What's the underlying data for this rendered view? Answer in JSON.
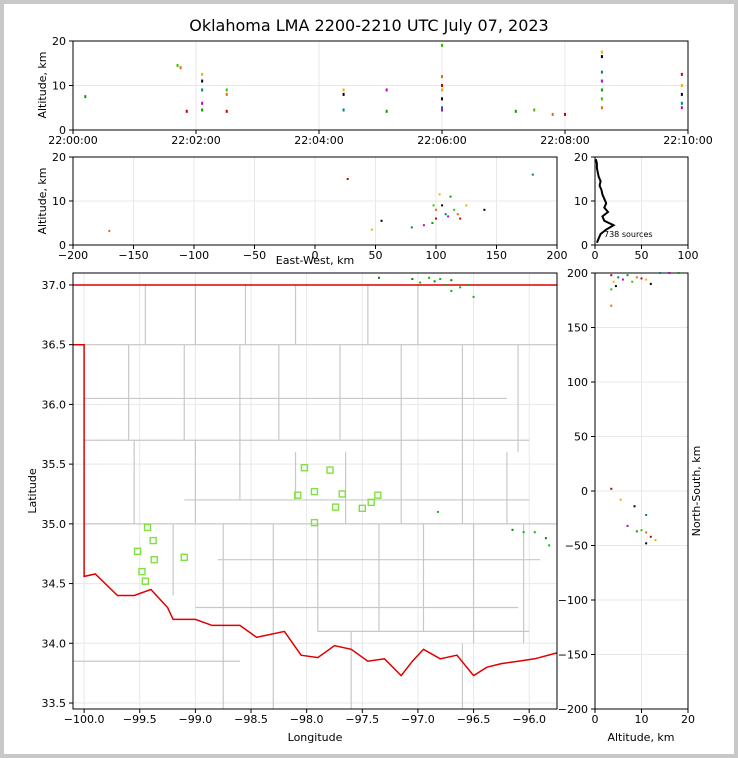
{
  "title": "Oklahoma LMA 2200-2210 UTC July 07, 2023",
  "colors": {
    "state_border": "#e00000",
    "county_border": "#c8c8c8",
    "station": "#80e040",
    "grid": "#e8e8e8"
  },
  "chart_data": [
    {
      "panel": "time-height",
      "type": "scatter",
      "ylabel": "Altitude, km",
      "ylim": [
        0,
        20
      ],
      "xticks": [
        "22:00:00",
        "22:02:00",
        "22:04:00",
        "22:06:00",
        "22:08:00",
        "22:10:00"
      ],
      "yticks": [
        "0",
        "10",
        "20"
      ],
      "xlim_minutes": [
        0,
        10
      ],
      "points": [
        [
          0.2,
          7.5
        ],
        [
          1.7,
          14.5
        ],
        [
          1.75,
          14
        ],
        [
          1.85,
          4.2
        ],
        [
          2.1,
          12.5
        ],
        [
          2.1,
          11
        ],
        [
          2.1,
          9
        ],
        [
          2.1,
          6
        ],
        [
          2.1,
          4.5
        ],
        [
          2.5,
          9
        ],
        [
          2.5,
          8
        ],
        [
          2.5,
          4.2
        ],
        [
          4.4,
          9
        ],
        [
          4.4,
          8
        ],
        [
          4.4,
          4.5
        ],
        [
          5.1,
          9
        ],
        [
          5.1,
          4.2
        ],
        [
          6.0,
          19
        ],
        [
          6.0,
          12
        ],
        [
          6.0,
          10
        ],
        [
          6.0,
          9
        ],
        [
          6.0,
          7
        ],
        [
          6.0,
          5
        ],
        [
          6.0,
          4.5
        ],
        [
          7.2,
          4.2
        ],
        [
          7.5,
          4.5
        ],
        [
          7.8,
          3.5
        ],
        [
          8.0,
          3.5
        ],
        [
          8.6,
          17.5
        ],
        [
          8.6,
          16.5
        ],
        [
          8.6,
          13
        ],
        [
          8.6,
          11
        ],
        [
          8.6,
          9
        ],
        [
          8.6,
          7
        ],
        [
          8.6,
          5
        ],
        [
          9.9,
          12.5
        ],
        [
          9.9,
          10
        ],
        [
          9.9,
          8
        ],
        [
          9.9,
          6
        ],
        [
          9.9,
          5
        ]
      ]
    },
    {
      "panel": "east-west",
      "type": "scatter",
      "xlabel": "East-West, km",
      "ylabel": "Altitude, km",
      "xlim": [
        -200,
        200
      ],
      "ylim": [
        0,
        20
      ],
      "xticks": [
        "−200",
        "−150",
        "−100",
        "−50",
        "0",
        "50",
        "100",
        "150",
        "200"
      ],
      "yticks": [
        "0",
        "10",
        "20"
      ],
      "points": [
        [
          -170,
          3.2
        ],
        [
          27,
          15
        ],
        [
          47,
          3.5
        ],
        [
          55,
          5.5
        ],
        [
          80,
          4
        ],
        [
          90,
          4.5
        ],
        [
          97,
          5
        ],
        [
          98,
          9
        ],
        [
          100,
          8
        ],
        [
          100,
          6
        ],
        [
          103,
          11.5
        ],
        [
          105,
          9
        ],
        [
          108,
          7
        ],
        [
          110,
          6.5
        ],
        [
          112,
          11
        ],
        [
          115,
          8
        ],
        [
          118,
          7
        ],
        [
          120,
          6
        ],
        [
          125,
          9
        ],
        [
          140,
          8
        ],
        [
          180,
          16
        ]
      ]
    },
    {
      "panel": "altitude-histogram",
      "type": "line",
      "xlim": [
        0,
        100
      ],
      "ylim": [
        0,
        20
      ],
      "xticks": [
        "0",
        "50",
        "100"
      ],
      "yticks": [
        "0",
        "10",
        "20"
      ],
      "annotation": "738 sources",
      "profile": [
        [
          2,
          0.5
        ],
        [
          4,
          1.5
        ],
        [
          6,
          2.5
        ],
        [
          12,
          3.5
        ],
        [
          20,
          4.5
        ],
        [
          10,
          5.5
        ],
        [
          8,
          6.5
        ],
        [
          14,
          7.5
        ],
        [
          10,
          8.5
        ],
        [
          12,
          9.5
        ],
        [
          10,
          10.5
        ],
        [
          8,
          11.5
        ],
        [
          7,
          12.5
        ],
        [
          5,
          13.5
        ],
        [
          6,
          14.5
        ],
        [
          4,
          15.5
        ],
        [
          3,
          16.5
        ],
        [
          2,
          17.5
        ],
        [
          2,
          18.5
        ],
        [
          1,
          19.5
        ]
      ]
    },
    {
      "panel": "plan-view",
      "type": "map",
      "xlabel": "Longitude",
      "ylabel": "Latitude",
      "xlim": [
        -100.1,
        -95.75
      ],
      "ylim": [
        33.45,
        37.1
      ],
      "xticks": [
        "−100.0",
        "−99.5",
        "−99.0",
        "−98.5",
        "−98.0",
        "−97.5",
        "−97.0",
        "−96.5",
        "−96.0"
      ],
      "yticks": [
        "33.5",
        "34.0",
        "34.5",
        "35.0",
        "35.5",
        "36.0",
        "36.5",
        "37.0"
      ],
      "stations": [
        [
          -99.43,
          34.97
        ],
        [
          -99.38,
          34.86
        ],
        [
          -99.52,
          34.77
        ],
        [
          -99.37,
          34.7
        ],
        [
          -99.1,
          34.72
        ],
        [
          -99.48,
          34.6
        ],
        [
          -99.45,
          34.52
        ],
        [
          -98.02,
          35.47
        ],
        [
          -97.79,
          35.45
        ],
        [
          -98.08,
          35.24
        ],
        [
          -97.93,
          35.27
        ],
        [
          -97.68,
          35.25
        ],
        [
          -97.36,
          35.24
        ],
        [
          -97.74,
          35.14
        ],
        [
          -97.5,
          35.13
        ],
        [
          -97.42,
          35.18
        ],
        [
          -97.93,
          35.01
        ]
      ],
      "sources": [
        [
          -96.85,
          37.03
        ],
        [
          -96.8,
          37.05
        ],
        [
          -96.75,
          37.0
        ],
        [
          -96.7,
          37.04
        ],
        [
          -96.62,
          36.98
        ],
        [
          -96.9,
          37.06
        ],
        [
          -97.05,
          37.05
        ],
        [
          -96.55,
          37.0
        ],
        [
          -96.98,
          37.02
        ],
        [
          -97.35,
          37.06
        ],
        [
          -96.7,
          36.95
        ],
        [
          -96.5,
          36.9
        ],
        [
          -96.15,
          34.95
        ],
        [
          -96.05,
          34.93
        ],
        [
          -95.95,
          34.93
        ],
        [
          -95.85,
          34.88
        ],
        [
          -95.82,
          34.82
        ],
        [
          -96.82,
          35.1
        ]
      ]
    },
    {
      "panel": "north-south",
      "type": "scatter",
      "xlabel": "Altitude, km",
      "ylabel": "North-South, km",
      "xlim": [
        0,
        20
      ],
      "ylim": [
        -200,
        200
      ],
      "xticks": [
        "0",
        "10",
        "20"
      ],
      "yticks": [
        "−200",
        "−150",
        "−100",
        "−50",
        "0",
        "50",
        "100",
        "150",
        "200"
      ],
      "points": [
        [
          3.5,
          198
        ],
        [
          4,
          192
        ],
        [
          4.5,
          188
        ],
        [
          5,
          196
        ],
        [
          6,
          194
        ],
        [
          7,
          198
        ],
        [
          8,
          192
        ],
        [
          9,
          196
        ],
        [
          10,
          195
        ],
        [
          11,
          194
        ],
        [
          12,
          190
        ],
        [
          14,
          200
        ],
        [
          16,
          200
        ],
        [
          18,
          200
        ],
        [
          3.5,
          185
        ],
        [
          3.5,
          170
        ],
        [
          3.5,
          2
        ],
        [
          5.5,
          -8
        ],
        [
          8.5,
          -14
        ],
        [
          11,
          -22
        ],
        [
          7,
          -32
        ],
        [
          9,
          -37
        ],
        [
          10,
          -36
        ],
        [
          11,
          -38
        ],
        [
          12,
          -42
        ],
        [
          13,
          -45
        ],
        [
          11,
          -48
        ]
      ]
    }
  ]
}
